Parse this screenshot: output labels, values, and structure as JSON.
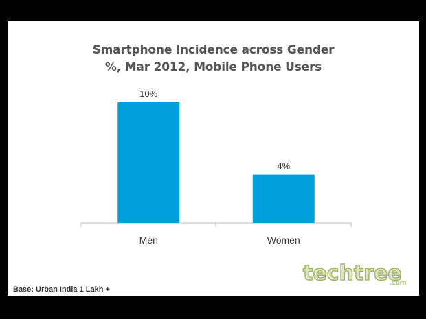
{
  "chart_data": {
    "type": "bar",
    "title": "Smartphone Incidence across Gender",
    "subtitle": "%, Mar 2012, Mobile Phone Users",
    "categories": [
      "Men",
      "Women"
    ],
    "values": [
      10,
      4
    ],
    "data_labels": [
      "10%",
      "4%"
    ],
    "ylim": [
      0,
      10
    ],
    "grid": false,
    "bar_color": "#00a0dc"
  },
  "footnote": "Base: Urban India 1 Lakh +",
  "watermark": {
    "brand": "techtree",
    "domain": ".com"
  }
}
